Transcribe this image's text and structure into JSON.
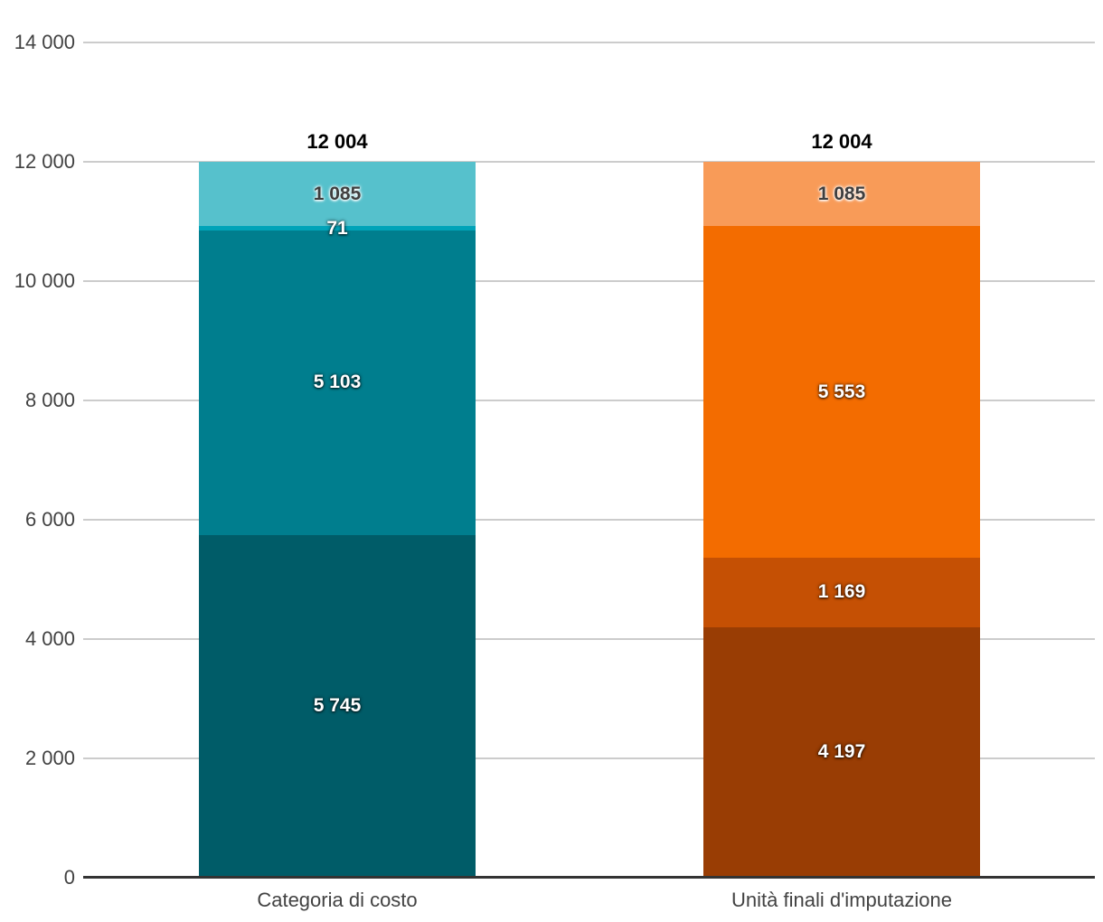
{
  "chart_data": {
    "type": "bar",
    "stacked": true,
    "title": "",
    "xlabel": "",
    "ylabel": "",
    "ylim": [
      0,
      14000
    ],
    "ytick_step": 2000,
    "grid": true,
    "legend": "none",
    "yticks": [
      {
        "value": 0,
        "label": "0"
      },
      {
        "value": 2000,
        "label": "2 000"
      },
      {
        "value": 4000,
        "label": "4 000"
      },
      {
        "value": 6000,
        "label": "6 000"
      },
      {
        "value": 8000,
        "label": "8 000"
      },
      {
        "value": 10000,
        "label": "10 000"
      },
      {
        "value": 12000,
        "label": "12 000"
      },
      {
        "value": 14000,
        "label": "14 000"
      }
    ],
    "categories": [
      "Categoria di costo",
      "Unità finali d'imputazione"
    ],
    "bars": [
      {
        "category": "Categoria di costo",
        "total": 12004,
        "total_label": "12 004",
        "segments": [
          {
            "value": 5745,
            "label": "5 745",
            "color": "#005c68",
            "label_style": "light"
          },
          {
            "value": 5103,
            "label": "5 103",
            "color": "#007e8e",
            "label_style": "light"
          },
          {
            "value": 71,
            "label": "71",
            "color": "#00a3b8",
            "label_style": "light"
          },
          {
            "value": 1085,
            "label": "1 085",
            "color": "#56c1cc",
            "label_style": "dark"
          }
        ]
      },
      {
        "category": "Unità finali d'imputazione",
        "total": 12004,
        "total_label": "12 004",
        "segments": [
          {
            "value": 4197,
            "label": "4 197",
            "color": "#993d04",
            "label_style": "light"
          },
          {
            "value": 1169,
            "label": "1 169",
            "color": "#c55004",
            "label_style": "light"
          },
          {
            "value": 5553,
            "label": "5 553",
            "color": "#f36c00",
            "label_style": "light"
          },
          {
            "value": 1085,
            "label": "1 085",
            "color": "#f89b58",
            "label_style": "dark"
          }
        ]
      }
    ]
  },
  "colors": {
    "background": "#ffffff",
    "gridline": "#cccccc",
    "axis_line": "#333333",
    "tick_text": "#424242",
    "category_text": "#424242",
    "total_text": "#000000"
  }
}
